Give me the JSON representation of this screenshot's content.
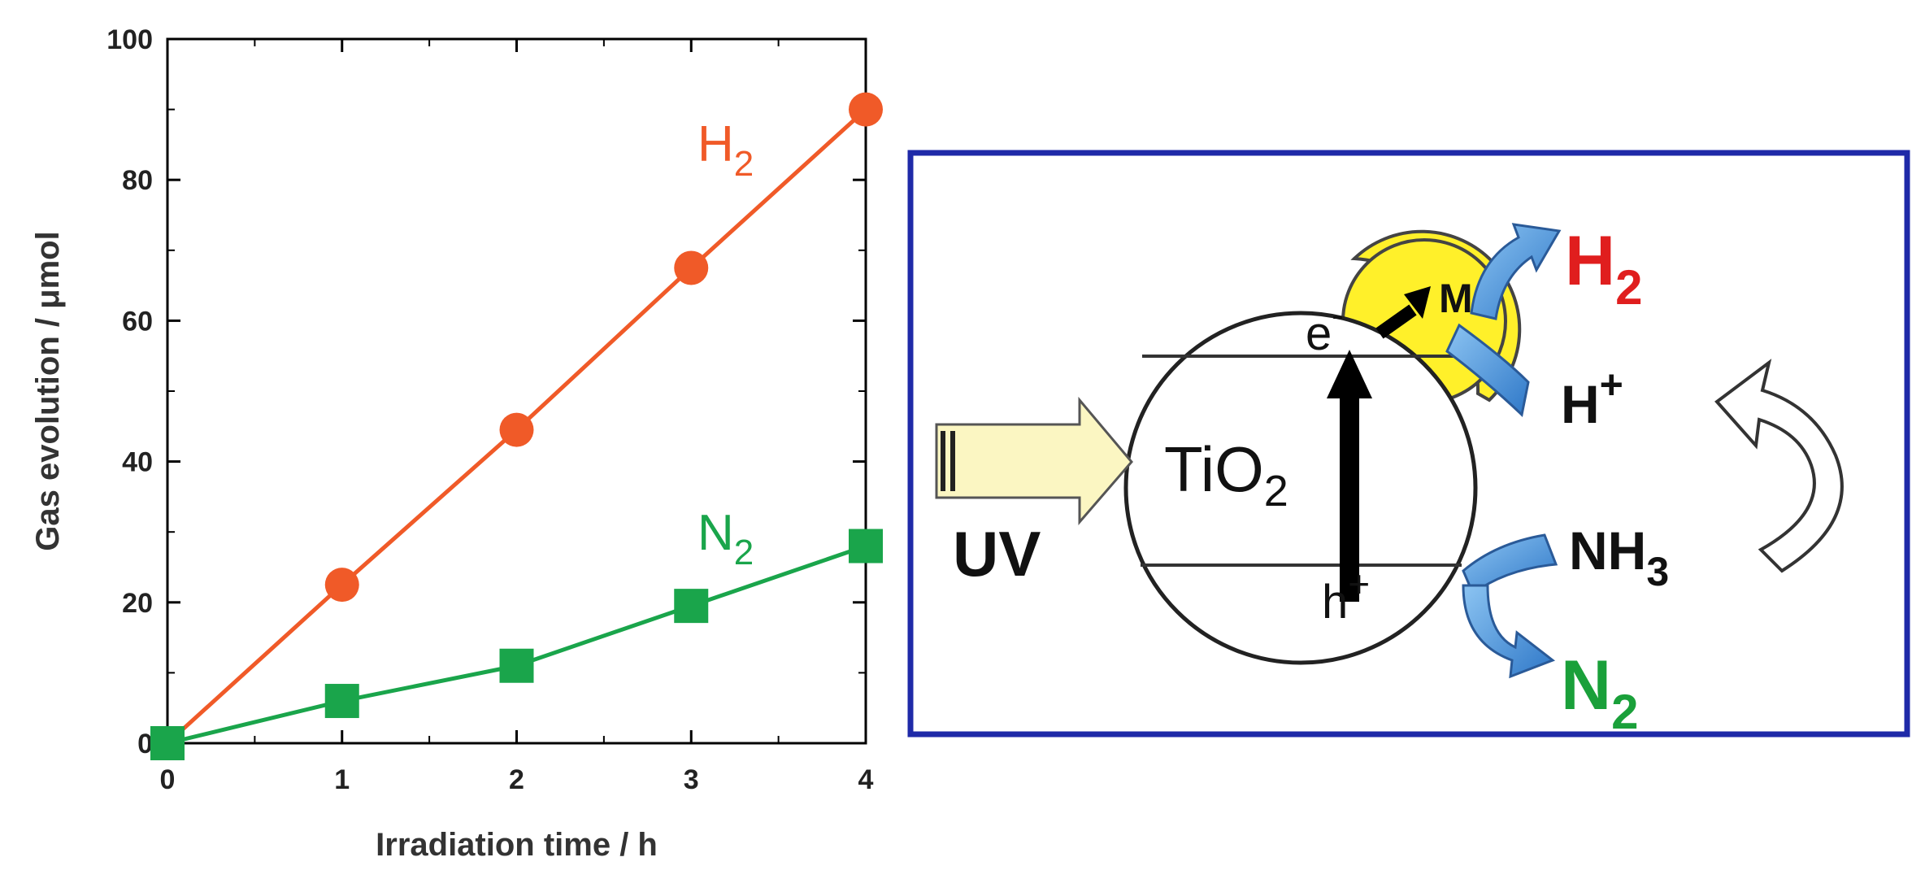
{
  "chart_data": {
    "type": "line",
    "xlabel": "Irradiation time / h",
    "ylabel": "Gas evolution / μmol",
    "xlim": [
      0,
      4
    ],
    "ylim": [
      0,
      100
    ],
    "xticks": [
      "0",
      "1",
      "2",
      "3",
      "4"
    ],
    "yticks": [
      "0",
      "20",
      "40",
      "60",
      "80",
      "100"
    ],
    "grid": false,
    "x": [
      0,
      1,
      2,
      3,
      4
    ],
    "series": [
      {
        "name": "H2",
        "label_main": "H",
        "label_sub": "2",
        "marker": "circle",
        "color": "#f05a28",
        "values": [
          0,
          22.5,
          44.5,
          67.5,
          90
        ]
      },
      {
        "name": "N2",
        "label_main": "N",
        "label_sub": "2",
        "marker": "square",
        "color": "#1aa54b",
        "values": [
          0,
          6,
          11,
          19.5,
          28
        ]
      }
    ]
  },
  "diagram": {
    "uv_label": "UV",
    "semiconductor_main": "TiO",
    "semiconductor_sub": "2",
    "electron_main": "e",
    "electron_sup": "-",
    "hole_main": "h",
    "hole_sup": "+",
    "cocatalyst": "M",
    "h2_main": "H",
    "h2_sub": "2",
    "hplus_main": "H",
    "hplus_sup": "+",
    "nh3_main": "NH",
    "nh3_sub": "3",
    "n2_main": "N",
    "n2_sub": "2",
    "colors": {
      "frame": "#1f2aa8",
      "cocatalyst_fill": "#fff02a",
      "uv_arrow_fill": "#fbf6c2",
      "flow_arrow": "#3f8fd6",
      "h2_text": "#e01e1e",
      "n2_text": "#1aa03a"
    }
  }
}
